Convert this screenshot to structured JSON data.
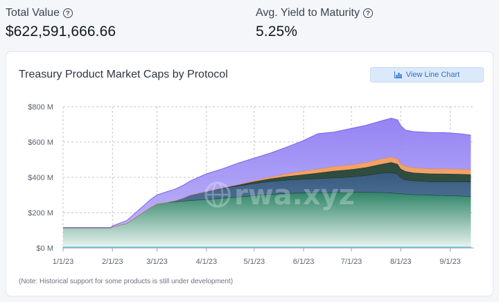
{
  "stats": {
    "total_value_label": "Total Value",
    "total_value": "$622,591,666.66",
    "yield_label": "Avg. Yield to Maturity",
    "yield_value": "5.25%"
  },
  "card": {
    "title": "Treasury Product Market Caps by Protocol",
    "button_label": "View Line Chart",
    "note": "(Note: Historical support for some products is still under development)",
    "watermark": "rwa.xyz"
  },
  "colors": {
    "purple": "#a799f5",
    "purple_line": "#7b61f0",
    "orange": "#f2a266",
    "dark_green": "#2f4d3f",
    "blue": "#3f678a",
    "green_top": "#2f8468",
    "green_bottom": "#eaf4f0",
    "cyan": "#7ad3e8",
    "button_bg": "#dce9fb",
    "button_text": "#2c6fd1"
  },
  "chart_data": {
    "type": "area",
    "x_tick_labels": [
      "1/1/23",
      "2/1/23",
      "3/1/23",
      "4/1/23",
      "5/1/23",
      "6/1/23",
      "7/1/23",
      "8/1/23",
      "9/1/23"
    ],
    "y_tick_labels": [
      "$0 M",
      "$200 M",
      "$400 M",
      "$600 M",
      "$800 M"
    ],
    "ylim": [
      0,
      800
    ],
    "xlim": [
      0,
      258
    ],
    "grid": true,
    "x": [
      0,
      10,
      20,
      30,
      31,
      40,
      45,
      50,
      55,
      59,
      65,
      70,
      75,
      80,
      90,
      100,
      110,
      120,
      130,
      140,
      150,
      160,
      170,
      180,
      190,
      200,
      206,
      210,
      212,
      215,
      220,
      230,
      240,
      250,
      256
    ],
    "series": [
      {
        "values": [
          115,
          115,
          115,
          115,
          120,
          140,
          170,
          200,
          230,
          250,
          258,
          262,
          266,
          270,
          275,
          283,
          290,
          298,
          305,
          310,
          312,
          313,
          315,
          316,
          316,
          315,
          312,
          309,
          308,
          306,
          303,
          300,
          298,
          295,
          292
        ]
      },
      {
        "values": [
          0,
          0,
          0,
          0,
          0,
          0,
          0,
          0,
          0,
          0,
          0,
          5,
          15,
          30,
          45,
          55,
          62,
          68,
          72,
          75,
          78,
          80,
          83,
          86,
          95,
          110,
          115,
          110,
          90,
          80,
          78,
          76,
          78,
          80,
          82
        ]
      },
      {
        "values": [
          0,
          0,
          0,
          0,
          0,
          0,
          0,
          0,
          0,
          0,
          0,
          0,
          0,
          0,
          0,
          2,
          5,
          10,
          15,
          20,
          25,
          32,
          38,
          42,
          45,
          50,
          58,
          56,
          50,
          48,
          45,
          45,
          44,
          43,
          42
        ]
      },
      {
        "values": [
          0,
          0,
          0,
          0,
          0,
          0,
          0,
          0,
          0,
          0,
          0,
          0,
          0,
          0,
          0,
          0,
          2,
          5,
          10,
          15,
          20,
          22,
          25,
          26,
          28,
          30,
          30,
          30,
          28,
          28,
          28,
          28,
          28,
          28,
          28
        ]
      },
      {
        "values": [
          0,
          0,
          0,
          0,
          5,
          15,
          25,
          35,
          45,
          50,
          60,
          65,
          72,
          80,
          100,
          108,
          122,
          128,
          135,
          150,
          170,
          200,
          195,
          205,
          210,
          215,
          220,
          220,
          215,
          205,
          205,
          205,
          205,
          200,
          195
        ]
      },
      {
        "values": [
          5,
          5,
          5,
          5,
          5,
          5,
          5,
          5,
          5,
          5,
          5,
          5,
          5,
          5,
          5,
          5,
          5,
          5,
          5,
          5,
          5,
          5,
          5,
          5,
          5,
          5,
          5,
          5,
          5,
          5,
          5,
          5,
          5,
          5,
          5
        ]
      }
    ]
  }
}
